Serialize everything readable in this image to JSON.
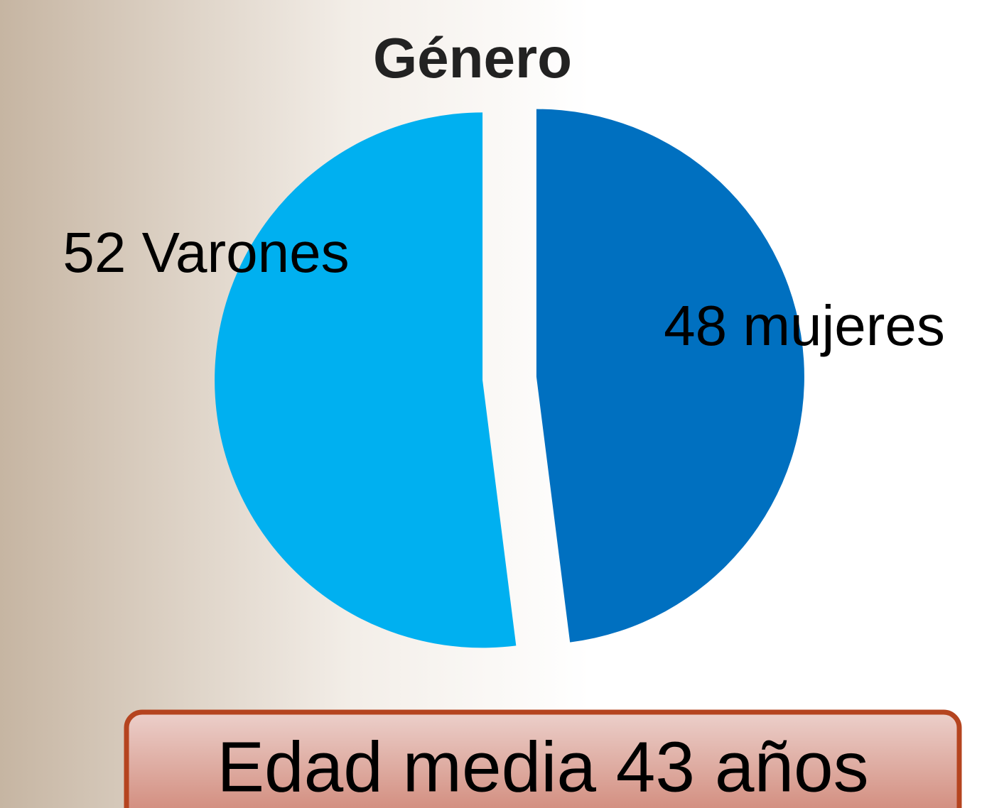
{
  "chart_data": {
    "type": "pie",
    "title": "Género",
    "categories": [
      "Varones",
      "mujeres"
    ],
    "values": [
      52,
      48
    ],
    "value_labels": [
      "52 Varones",
      "48 mujeres"
    ],
    "colors": [
      "#00b0f0",
      "#0070c0"
    ],
    "annotation": "Edad media 43 años"
  }
}
